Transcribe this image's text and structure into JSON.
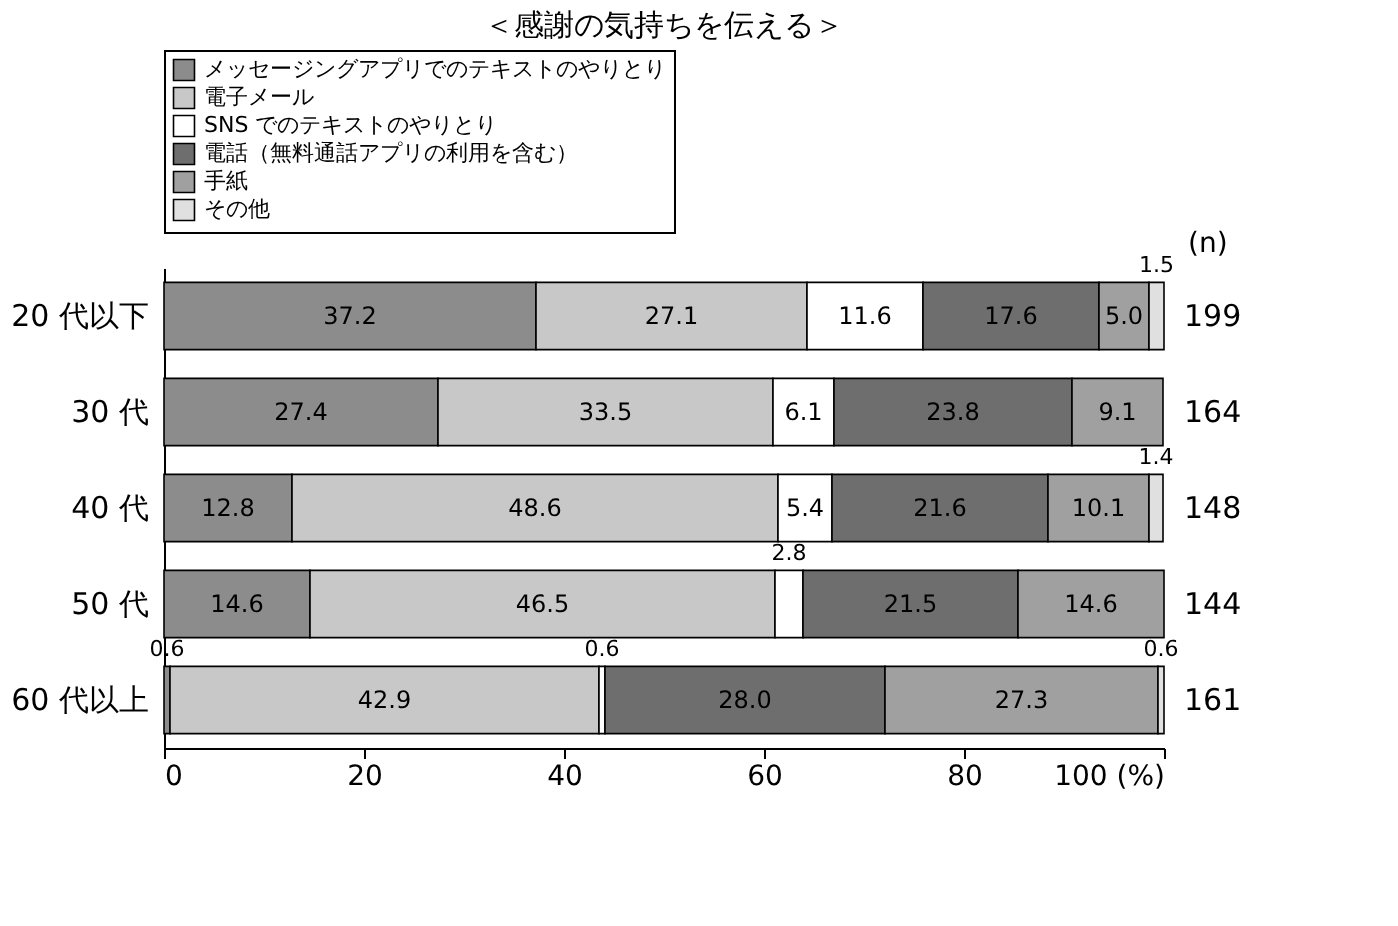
{
  "chart_data": {
    "type": "bar",
    "orientation": "horizontal",
    "stacked": true,
    "title": "＜感謝の気持ちを伝える＞",
    "categories": [
      "20 代以下",
      "30 代",
      "40 代",
      "50 代",
      "60 代以上"
    ],
    "series": [
      {
        "name": "メッセージングアプリでのテキストのやりとり",
        "color": "#8c8c8c",
        "values": [
          37.2,
          27.4,
          12.8,
          14.6,
          0.6
        ],
        "value_labels": [
          "37.2",
          "27.4",
          "12.8",
          "14.6",
          "0.6"
        ]
      },
      {
        "name": "電子メール",
        "color": "#c8c8c8",
        "values": [
          27.1,
          33.5,
          48.6,
          46.5,
          42.9
        ],
        "value_labels": [
          "27.1",
          "33.5",
          "48.6",
          "46.5",
          "42.9"
        ]
      },
      {
        "name": "SNS でのテキストのやりとり",
        "color": "#ffffff",
        "values": [
          11.6,
          6.1,
          5.4,
          2.8,
          0.6
        ],
        "value_labels": [
          "11.6",
          "6.1",
          "5.4",
          "2.8",
          "0.6"
        ]
      },
      {
        "name": "電話（無料通話アプリの利用を含む）",
        "color": "#6e6e6e",
        "values": [
          17.6,
          23.8,
          21.6,
          21.5,
          28.0
        ],
        "value_labels": [
          "17.6",
          "23.8",
          "21.6",
          "21.5",
          "28.0"
        ]
      },
      {
        "name": "手紙",
        "color": "#a0a0a0",
        "values": [
          5.0,
          9.1,
          10.1,
          14.6,
          27.3
        ],
        "value_labels": [
          "5.0",
          "9.1",
          "10.1",
          "14.6",
          "27.3"
        ]
      },
      {
        "name": "その他",
        "color": "#e0e0e0",
        "values": [
          1.5,
          null,
          1.4,
          null,
          0.6
        ],
        "value_labels": [
          "1.5",
          null,
          "1.4",
          null,
          "0.6"
        ]
      }
    ],
    "xlim": [
      0,
      100
    ],
    "xticks": [
      0,
      20,
      40,
      60,
      80,
      {
        "value": 100,
        "label": "100 (%)"
      }
    ],
    "grid": false,
    "legend": "top",
    "annotations": [
      "(n)",
      "199",
      "164",
      "148",
      "144",
      "161"
    ]
  }
}
